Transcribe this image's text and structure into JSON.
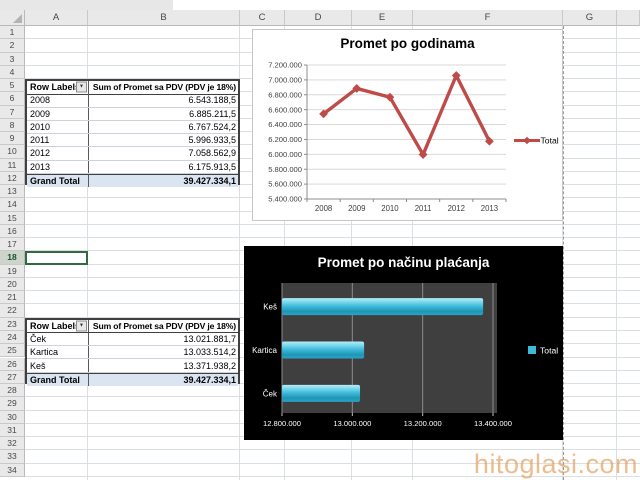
{
  "spreadsheet": {
    "columns": [
      "A",
      "B",
      "C",
      "D",
      "E",
      "F",
      "G"
    ],
    "rows": [
      "1",
      "2",
      "3",
      "4",
      "5",
      "6",
      "7",
      "8",
      "9",
      "10",
      "11",
      "12",
      "13",
      "14",
      "15",
      "16",
      "17",
      "18",
      "19",
      "20",
      "21",
      "22",
      "23",
      "24",
      "25",
      "26",
      "27",
      "28",
      "29",
      "30",
      "31",
      "32",
      "33",
      "34"
    ],
    "selected_row": "18",
    "active_cell": "A18"
  },
  "pivot_table_years": {
    "header": {
      "row_label": "Row Labels",
      "value_label": "Sum of Promet sa PDV (PDV je 18%)",
      "filter_icon": "chevron-down-icon"
    },
    "rows": [
      {
        "label": "2008",
        "value": "6.543.188,5"
      },
      {
        "label": "2009",
        "value": "6.885.211,5"
      },
      {
        "label": "2010",
        "value": "6.767.524,2"
      },
      {
        "label": "2011",
        "value": "5.996.933,5"
      },
      {
        "label": "2012",
        "value": "7.058.562,9"
      },
      {
        "label": "2013",
        "value": "6.175.913,5"
      }
    ],
    "grand_total": {
      "label": "Grand Total",
      "value": "39.427.334,1"
    }
  },
  "pivot_table_payment": {
    "header": {
      "row_label": "Row Labels",
      "value_label": "Sum of Promet sa PDV (PDV je 18%)",
      "filter_icon": "chevron-down-icon"
    },
    "rows": [
      {
        "label": "Ček",
        "value": "13.021.881,7"
      },
      {
        "label": "Kartica",
        "value": "13.033.514,2"
      },
      {
        "label": "Keš",
        "value": "13.371.938,2"
      }
    ],
    "grand_total": {
      "label": "Grand Total",
      "value": "39.427.334,1"
    }
  },
  "chart_data": [
    {
      "type": "line",
      "title": "Promet po godinama",
      "categories": [
        "2008",
        "2009",
        "2010",
        "2011",
        "2012",
        "2013"
      ],
      "series": [
        {
          "name": "Total",
          "values": [
            6543188.5,
            6885211.5,
            6767524.2,
            5996933.5,
            7058562.9,
            6175913.5
          ]
        }
      ],
      "ylim": [
        5400000,
        7200000
      ],
      "ytick_step": 200000,
      "ytick_labels": [
        "5.400.000",
        "5.600.000",
        "5.800.000",
        "6.000.000",
        "6.200.000",
        "6.400.000",
        "6.600.000",
        "6.800.000",
        "7.000.000",
        "7.200.000"
      ],
      "legend_position": "right",
      "grid": true,
      "line_color": "#be4b48",
      "background": "#ffffff",
      "text_color": "#404040"
    },
    {
      "type": "bar",
      "orientation": "horizontal",
      "title": "Promet po načinu plaćanja",
      "categories": [
        "Keš",
        "Kartica",
        "Ček"
      ],
      "series": [
        {
          "name": "Total",
          "values": [
            13371938.2,
            13033514.2,
            13021881.7
          ]
        }
      ],
      "xlim": [
        12800000,
        13400000
      ],
      "xticks": [
        12800000,
        13000000,
        13200000,
        13400000
      ],
      "xtick_labels": [
        "12.800.000",
        "13.000.000",
        "13.200.000",
        "13.400.000"
      ],
      "legend_position": "right",
      "grid": true,
      "bar_color": "#3fb9d8",
      "background": "#000000",
      "plot_background": "#3f3f3f",
      "text_color": "#ffffff"
    }
  ],
  "watermark": "hitoglasi.com"
}
